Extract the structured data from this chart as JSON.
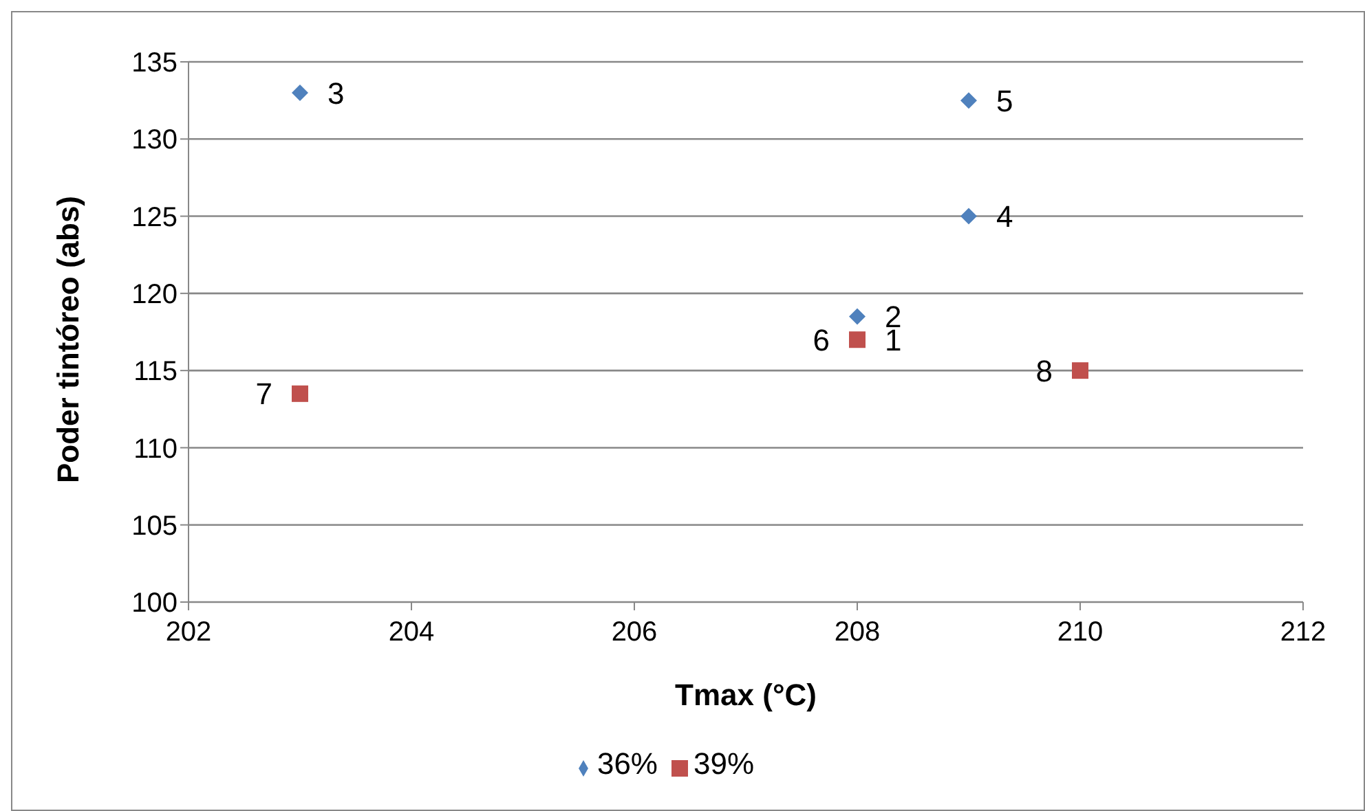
{
  "chart_data": {
    "type": "scatter",
    "xlabel": "Tmax (°C)",
    "ylabel": "Poder tintóreo (abs)",
    "xlim": [
      202,
      212
    ],
    "xticks": [
      202,
      204,
      206,
      208,
      210,
      212
    ],
    "ylim": [
      100,
      135
    ],
    "yticks": [
      100,
      105,
      110,
      115,
      120,
      125,
      130,
      135
    ],
    "grid": "y",
    "legend": "bottom",
    "series": [
      {
        "name": "36%",
        "color": "#4f81bd",
        "marker": "diamond",
        "x": [
          208,
          203,
          209,
          209
        ],
        "values": [
          118.5,
          133,
          125,
          132.5
        ]
      },
      {
        "name": "39%",
        "color": "#c0504d",
        "marker": "square",
        "x": [
          208,
          203,
          210
        ],
        "values": [
          117,
          113.5,
          115
        ]
      }
    ],
    "annotations": [
      {
        "text": "6",
        "x": 208,
        "y": 117
      },
      {
        "text": "1",
        "x": 208,
        "y": 117
      },
      {
        "text": "2",
        "x": 208,
        "y": 118.5
      },
      {
        "text": "3",
        "x": 203,
        "y": 133
      },
      {
        "text": "4",
        "x": 209,
        "y": 125
      },
      {
        "text": "5",
        "x": 209,
        "y": 132.5
      },
      {
        "text": "7",
        "x": 203,
        "y": 113.5
      },
      {
        "text": "8",
        "x": 210,
        "y": 115
      }
    ]
  }
}
